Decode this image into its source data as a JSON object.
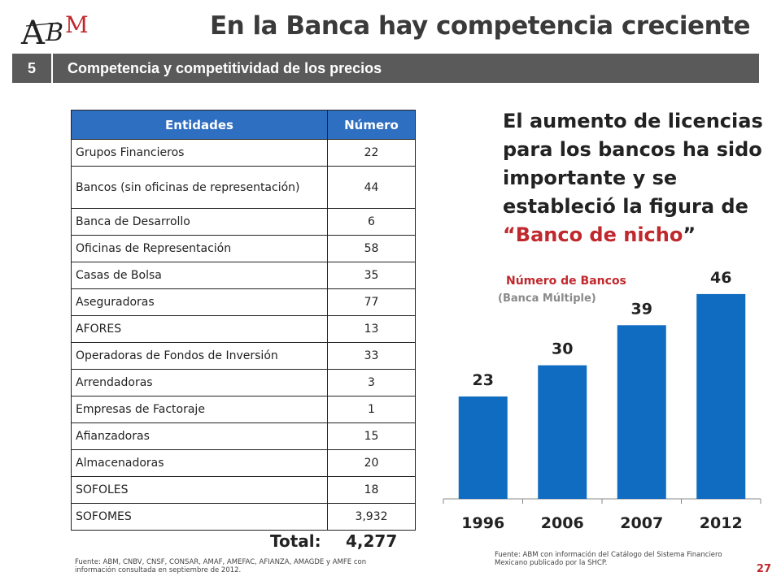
{
  "header": {
    "logo_text": "ABM",
    "title": "En la Banca hay competencia creciente"
  },
  "section": {
    "number": "5",
    "title": "Competencia y competitividad de los precios"
  },
  "table": {
    "headers": [
      "Entidades",
      "Número"
    ],
    "rows": [
      {
        "entity": "Grupos Financieros",
        "number": "22"
      },
      {
        "entity": "Bancos (sin oficinas de representación)",
        "number": "44"
      },
      {
        "entity": "Banca de Desarrollo",
        "number": "6"
      },
      {
        "entity": "Oficinas de Representación",
        "number": "58"
      },
      {
        "entity": "Casas de Bolsa",
        "number": "35"
      },
      {
        "entity": "Aseguradoras",
        "number": "77"
      },
      {
        "entity": "AFORES",
        "number": "13"
      },
      {
        "entity": "Operadoras de Fondos de Inversión",
        "number": "33"
      },
      {
        "entity": "Arrendadoras",
        "number": "3"
      },
      {
        "entity": "Empresas de Factoraje",
        "number": "1"
      },
      {
        "entity": "Afianzadoras",
        "number": "15"
      },
      {
        "entity": "Almacenadoras",
        "number": "20"
      },
      {
        "entity": "SOFOLES",
        "number": "18"
      },
      {
        "entity": "SOFOMES",
        "number": "3,932"
      }
    ],
    "total_label": "Total:",
    "total_value": "4,277",
    "source": "Fuente: ABM, CNBV, CNSF, CONSAR, AMAF, AMEFAC, AFIANZA, AMAGDE y AMFE con información consultada en septiembre de 2012."
  },
  "headline": {
    "text": "El aumento de licencias para los bancos ha sido importante y se estableció la figura de",
    "quote_open": "“",
    "highlight": "Banco de nicho",
    "quote_close": "”"
  },
  "chart_data": {
    "type": "bar",
    "title": "Número de Bancos",
    "subtitle": "(Banca Múltiple)",
    "categories": [
      "1996",
      "2006",
      "2007",
      "2012"
    ],
    "values": [
      23,
      30,
      39,
      46
    ],
    "data_labels": [
      "23",
      "30",
      "39",
      "46"
    ],
    "ylim": [
      0,
      50
    ],
    "grid": false,
    "bar_color": "#0f6cc0",
    "source": "Fuente: ABM con información del Catálogo del Sistema Financiero Mexicano publicado por la SHCP."
  },
  "page_number": "27",
  "colors": {
    "accent_red": "#c0282d",
    "header_blue": "#2f6fc1",
    "section_gray": "#5a5a5a"
  }
}
